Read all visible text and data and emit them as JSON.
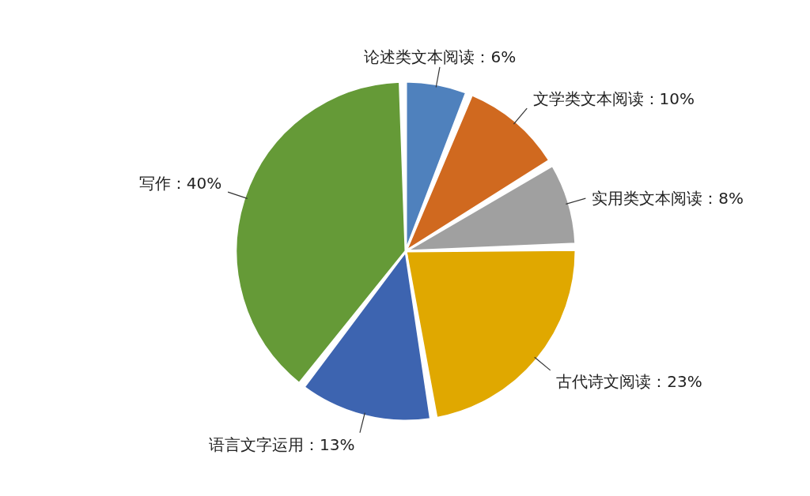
{
  "chart_data": {
    "type": "pie",
    "categories": [
      "论述类文本阅读",
      "文学类文本阅读",
      "实用类文本阅读",
      "古代诗文阅读",
      "语言文字运用",
      "写作"
    ],
    "values": [
      6,
      10,
      8,
      23,
      13,
      40
    ],
    "value_labels": [
      "6%",
      "10%",
      "8%",
      "23%",
      "13%",
      "40%"
    ],
    "colors": [
      "#4f81bd",
      "#d0691f",
      "#a0a0a0",
      "#e0a800",
      "#3d64b0",
      "#659a37"
    ]
  }
}
